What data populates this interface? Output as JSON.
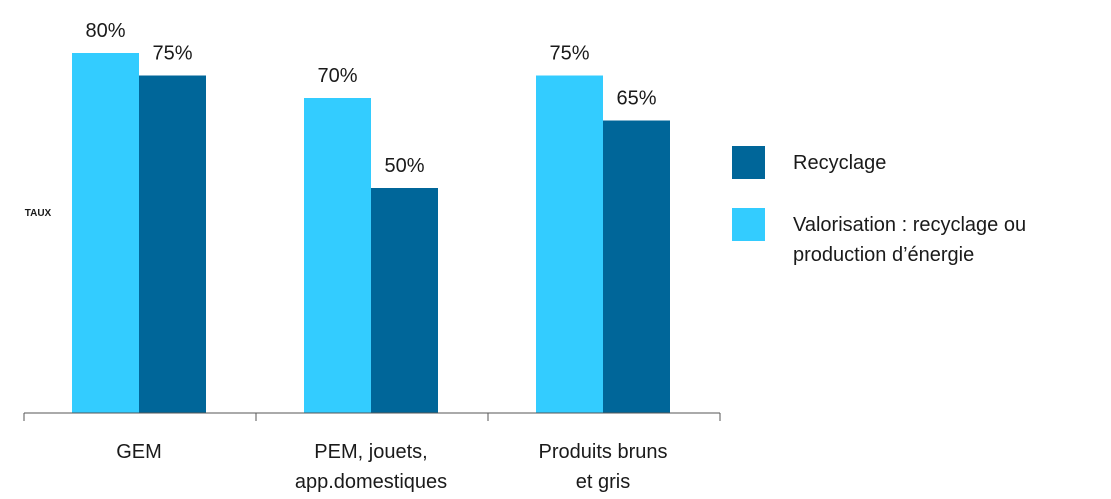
{
  "chart_data": {
    "type": "bar",
    "ylabel": "TAUX",
    "xlabel": "",
    "ylim": [
      0,
      100
    ],
    "grid": false,
    "legend_position": "right",
    "categories": [
      [
        "GEM"
      ],
      [
        "PEM, jouets,",
        "app.domestiques"
      ],
      [
        "Produits bruns",
        "et gris"
      ]
    ],
    "series": [
      {
        "name": "Valorisation : recyclage ou production d’énergie",
        "legend_lines": [
          "Valorisation : recyclage ou",
          "production d’énergie"
        ],
        "color": "#33CCFF",
        "values": [
          80,
          70,
          75
        ],
        "labels": [
          "80%",
          "70%",
          "75%"
        ]
      },
      {
        "name": "Recyclage",
        "legend_lines": [
          "Recyclage"
        ],
        "color": "#006699",
        "values": [
          75,
          50,
          65
        ],
        "labels": [
          "75%",
          "50%",
          "65%"
        ]
      }
    ],
    "legend_order": [
      1,
      0
    ]
  }
}
